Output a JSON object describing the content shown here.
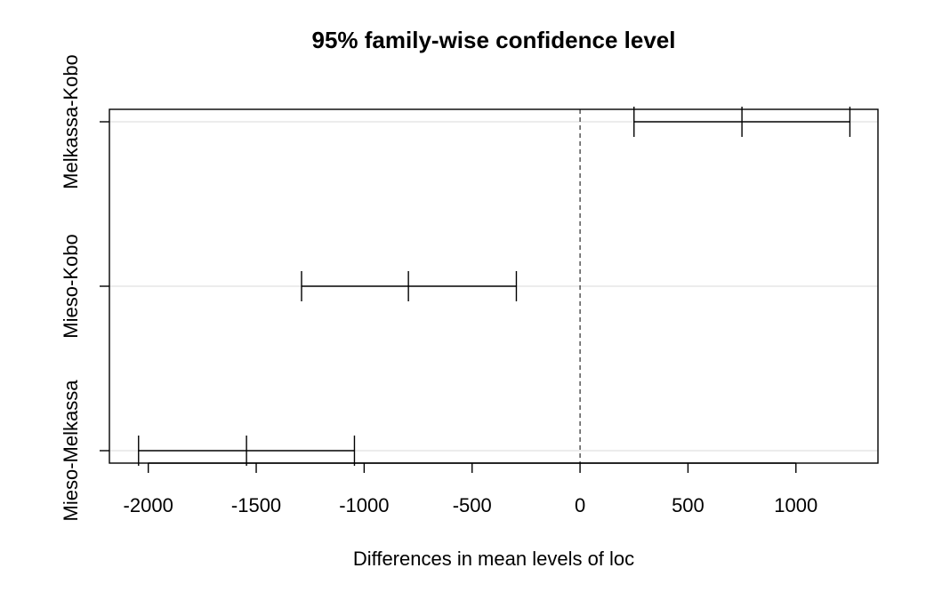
{
  "chart_data": {
    "type": "errorbar",
    "title": "95% family-wise confidence level",
    "xlabel": "Differences in mean levels of loc",
    "ylabel": "",
    "xlim": [
      -2180,
      1380
    ],
    "xticks": [
      -2000,
      -1500,
      -1000,
      -500,
      0,
      500,
      1000
    ],
    "reference_line": 0,
    "grid": true,
    "comparisons": [
      {
        "label": "Melkassa-Kobo",
        "lwr": 250,
        "diff": 750,
        "upr": 1250
      },
      {
        "label": "Mieso-Kobo",
        "lwr": -1290,
        "diff": -795,
        "upr": -295
      },
      {
        "label": "Mieso-Melkassa",
        "lwr": -2045,
        "diff": -1545,
        "upr": -1045
      }
    ]
  }
}
